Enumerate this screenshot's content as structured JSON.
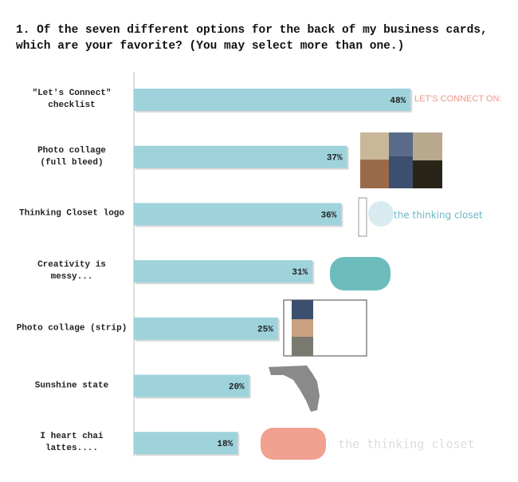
{
  "chart_data": {
    "type": "bar",
    "orientation": "horizontal",
    "title": "1. Of the seven different options for the back of my business cards,\nwhich are your favorite? (You may select more than one.)",
    "categories": [
      "\"Let's Connect\"\nchecklist",
      "Photo collage\n(full bleed)",
      "Thinking Closet logo",
      "Creativity is\nmessy...",
      "Photo collage (strip)",
      "Sunshine state",
      "I heart chai lattes...."
    ],
    "values": [
      48,
      37,
      36,
      31,
      25,
      20,
      18
    ],
    "value_labels": [
      "48%",
      "37%",
      "36%",
      "31%",
      "25%",
      "20%",
      "18%"
    ],
    "color": "#9fd3dc",
    "xlim": [
      0,
      60
    ],
    "annotations": [
      "LET'S CONNECT ON:",
      "the thinking closet",
      "the thinking closet"
    ]
  }
}
